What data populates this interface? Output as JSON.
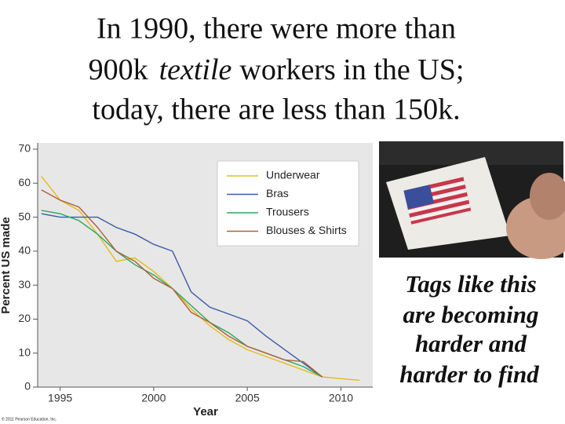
{
  "slide": {
    "title_line1": "In 1990, there were more than",
    "title_line2": [
      "900k",
      "textile",
      "workers in the US;"
    ],
    "title_line3": "today, there are less than 150k.",
    "caption_lines": [
      "Tags like this",
      "are becoming",
      "harder and",
      "harder to find"
    ]
  },
  "chart_data": {
    "type": "line",
    "x_label": "Year",
    "y_label": "Percent US made",
    "credit": "© 2011 Pearson Education, Inc.",
    "x": [
      1994,
      1995,
      1996,
      1997,
      1998,
      1999,
      2000,
      2001,
      2002,
      2003,
      2004,
      2005,
      2006,
      2007,
      2008,
      2009,
      2010,
      2011
    ],
    "series": [
      {
        "name": "Underwear",
        "color": "#e3bb1e",
        "values": [
          62,
          55,
          52,
          45,
          37,
          38,
          34,
          29,
          23,
          18,
          14,
          11,
          9,
          7,
          5,
          3,
          2.5,
          2
        ]
      },
      {
        "name": "Bras",
        "color": "#3b5ba8",
        "values": [
          51,
          50,
          50,
          50,
          47,
          45,
          42,
          40,
          28,
          23.5,
          21.5,
          19.5,
          15,
          11,
          7,
          3,
          null,
          null
        ]
      },
      {
        "name": "Trousers",
        "color": "#2aa860",
        "values": [
          52,
          51,
          49,
          45,
          40,
          36,
          33,
          29,
          24,
          19,
          16,
          12,
          10,
          8,
          6,
          3,
          null,
          null
        ]
      },
      {
        "name": "Blouses & Shirts",
        "color": "#b0603a",
        "values": [
          58,
          55,
          53,
          47,
          40,
          37,
          32,
          29,
          22,
          19,
          15,
          12,
          10,
          8,
          7.5,
          3,
          null,
          null
        ]
      }
    ],
    "xlim": [
      1993.8,
      2011.7
    ],
    "ylim": [
      0,
      70
    ],
    "xticks": [
      1995,
      2000,
      2005,
      2010
    ],
    "yticks": [
      0,
      10,
      20,
      30,
      40,
      50,
      60,
      70
    ],
    "legend": "upper right"
  }
}
